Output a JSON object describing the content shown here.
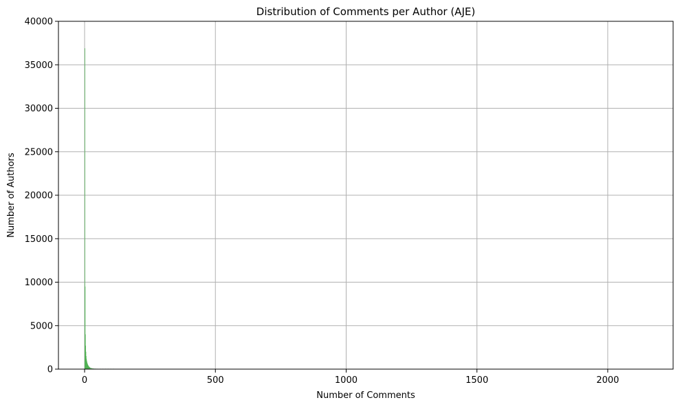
{
  "chart_data": {
    "type": "bar",
    "title": "Distribution of Comments per Author (AJE)",
    "xlabel": "Number of Comments",
    "ylabel": "Number of Authors",
    "xlim": [
      -100,
      2250
    ],
    "ylim": [
      0,
      40000
    ],
    "xticks": [
      0,
      500,
      1000,
      1500,
      2000
    ],
    "yticks": [
      0,
      5000,
      10000,
      15000,
      20000,
      25000,
      30000,
      35000,
      40000
    ],
    "grid": true,
    "bar_color": "#4caf50",
    "bins": {
      "x": [
        1,
        2,
        3,
        4,
        5,
        6,
        7,
        8,
        9,
        10,
        11,
        12,
        13,
        14,
        15,
        16,
        17,
        18,
        19,
        20,
        22,
        25,
        28,
        31,
        35,
        40,
        45,
        50,
        60,
        70,
        80,
        90,
        100,
        110
      ],
      "values": [
        36900,
        9500,
        4000,
        2700,
        2000,
        1500,
        1200,
        1000,
        850,
        720,
        620,
        540,
        470,
        410,
        360,
        320,
        280,
        250,
        220,
        200,
        170,
        140,
        120,
        100,
        80,
        65,
        50,
        40,
        30,
        22,
        16,
        12,
        9,
        6
      ]
    }
  }
}
